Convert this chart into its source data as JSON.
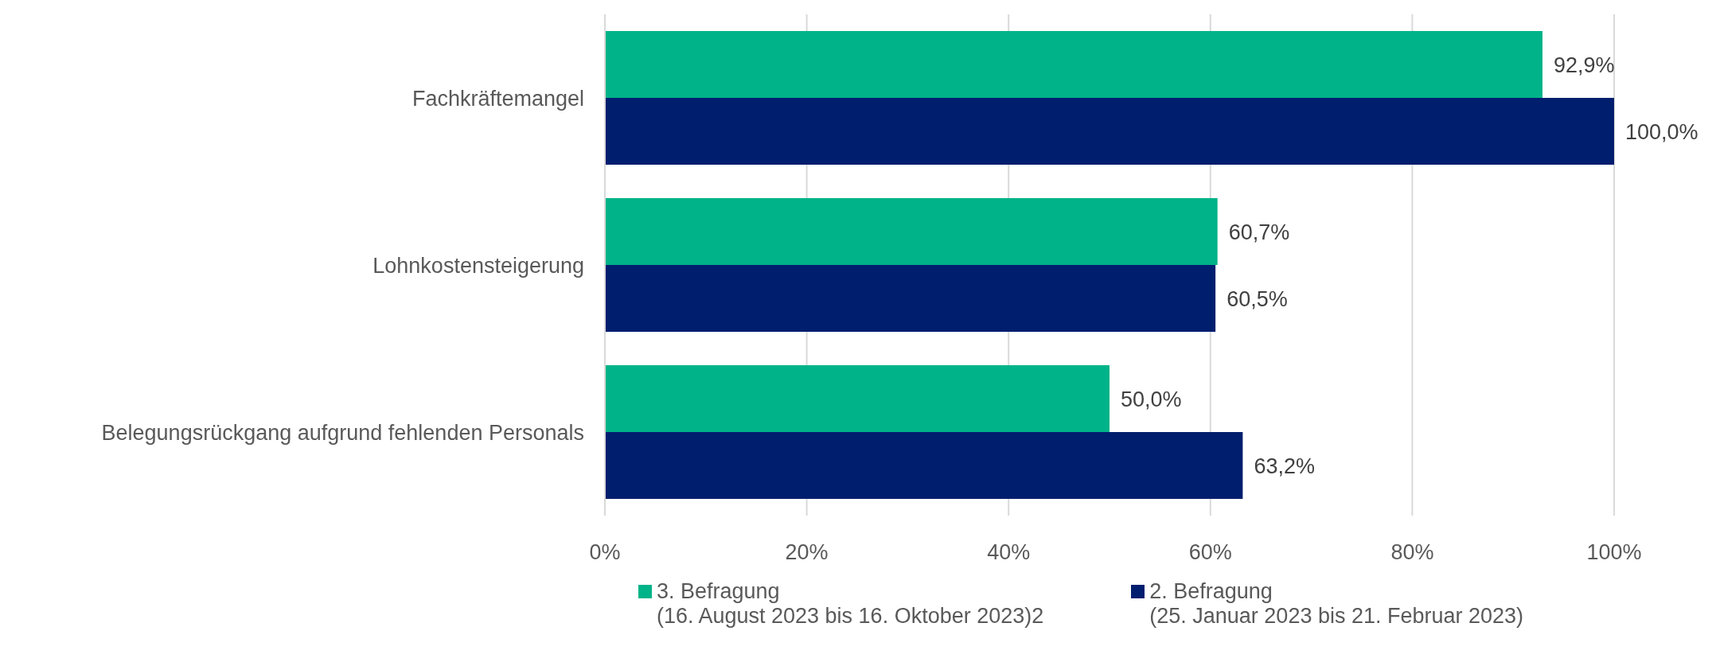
{
  "chart_data": {
    "type": "bar",
    "orientation": "horizontal",
    "categories": [
      "Fachkräftemangel",
      "Lohnkostensteigerung",
      "Belegungsrückgang aufgrund fehlenden Personals"
    ],
    "series": [
      {
        "name": "3. Befragung\n(16. August 2023 bis 16. Oktober 2023)2",
        "color": "#00b388",
        "values": [
          92.9,
          60.7,
          50.0
        ],
        "value_labels": [
          "92,9%",
          "60,7%",
          "50,0%"
        ]
      },
      {
        "name": "2. Befragung\n(25. Januar 2023 bis 21. Februar 2023)",
        "color": "#001e6e",
        "values": [
          100.0,
          60.5,
          63.2
        ],
        "value_labels": [
          "100,0%",
          "60,5%",
          "63,2%"
        ]
      }
    ],
    "xlim": [
      0,
      100
    ],
    "xticks": [
      {
        "value": 0,
        "label": "0%"
      },
      {
        "value": 20,
        "label": "20%"
      },
      {
        "value": 40,
        "label": "40%"
      },
      {
        "value": 60,
        "label": "60%"
      },
      {
        "value": 80,
        "label": "80%"
      },
      {
        "value": 100,
        "label": "100%"
      }
    ],
    "grid": "x",
    "legend": "bottom"
  }
}
